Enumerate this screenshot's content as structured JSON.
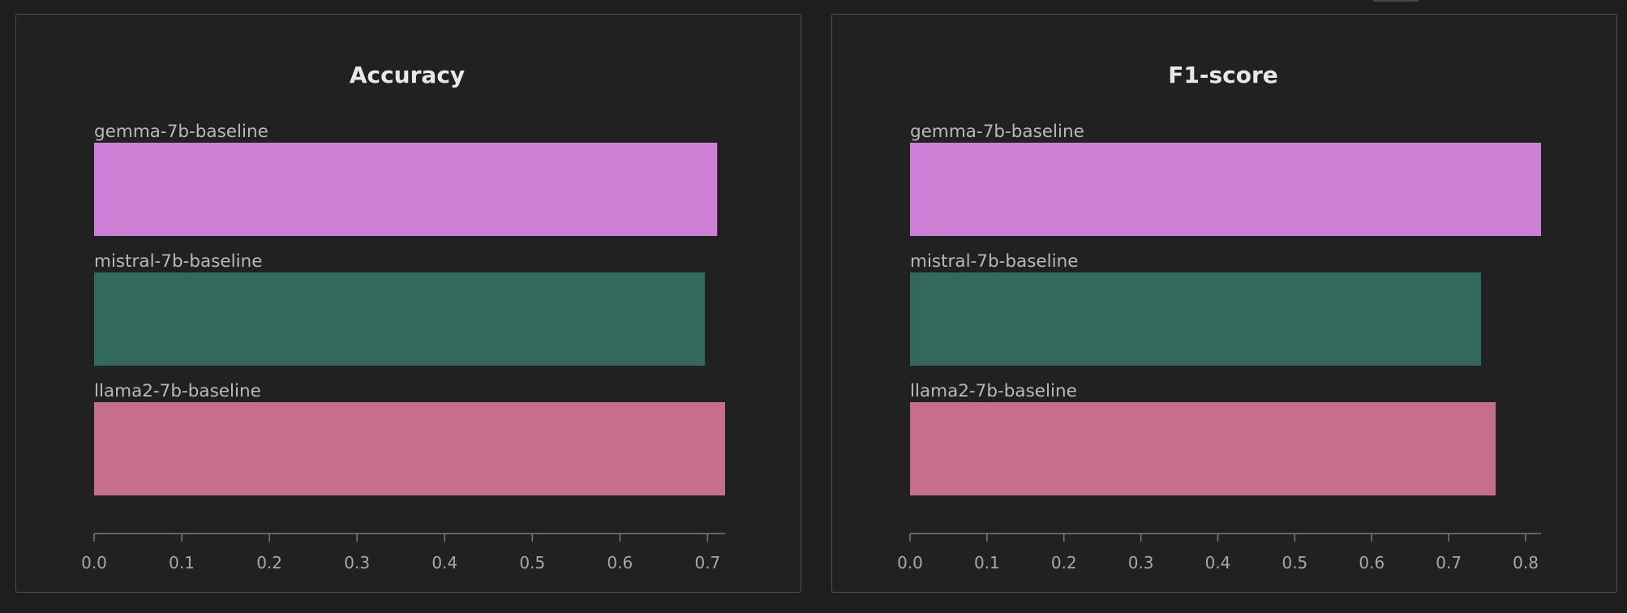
{
  "chart_data": [
    {
      "type": "bar",
      "orientation": "horizontal",
      "title": "Accuracy",
      "categories": [
        "gemma-7b-baseline",
        "mistral-7b-baseline",
        "llama2-7b-baseline"
      ],
      "values": [
        0.711,
        0.697,
        0.72
      ],
      "colors": [
        "#cd80d6",
        "#33685c",
        "#c66f8a"
      ],
      "xlim": [
        0,
        0.72
      ],
      "xticks": [
        0,
        0.1,
        0.2,
        0.3,
        0.4,
        0.5,
        0.6,
        0.7
      ],
      "xtick_labels": [
        "0.0",
        "0.1",
        "0.2",
        "0.3",
        "0.4",
        "0.5",
        "0.6",
        "0.7"
      ],
      "grid": false
    },
    {
      "type": "bar",
      "orientation": "horizontal",
      "title": "F1-score",
      "categories": [
        "gemma-7b-baseline",
        "mistral-7b-baseline",
        "llama2-7b-baseline"
      ],
      "values": [
        0.82,
        0.742,
        0.761
      ],
      "colors": [
        "#cd80d6",
        "#33685c",
        "#c66f8a"
      ],
      "xlim": [
        0,
        0.82
      ],
      "xticks": [
        0,
        0.1,
        0.2,
        0.3,
        0.4,
        0.5,
        0.6,
        0.7,
        0.8
      ],
      "xtick_labels": [
        "0.0",
        "0.1",
        "0.2",
        "0.3",
        "0.4",
        "0.5",
        "0.6",
        "0.7",
        "0.8"
      ],
      "grid": false
    }
  ]
}
